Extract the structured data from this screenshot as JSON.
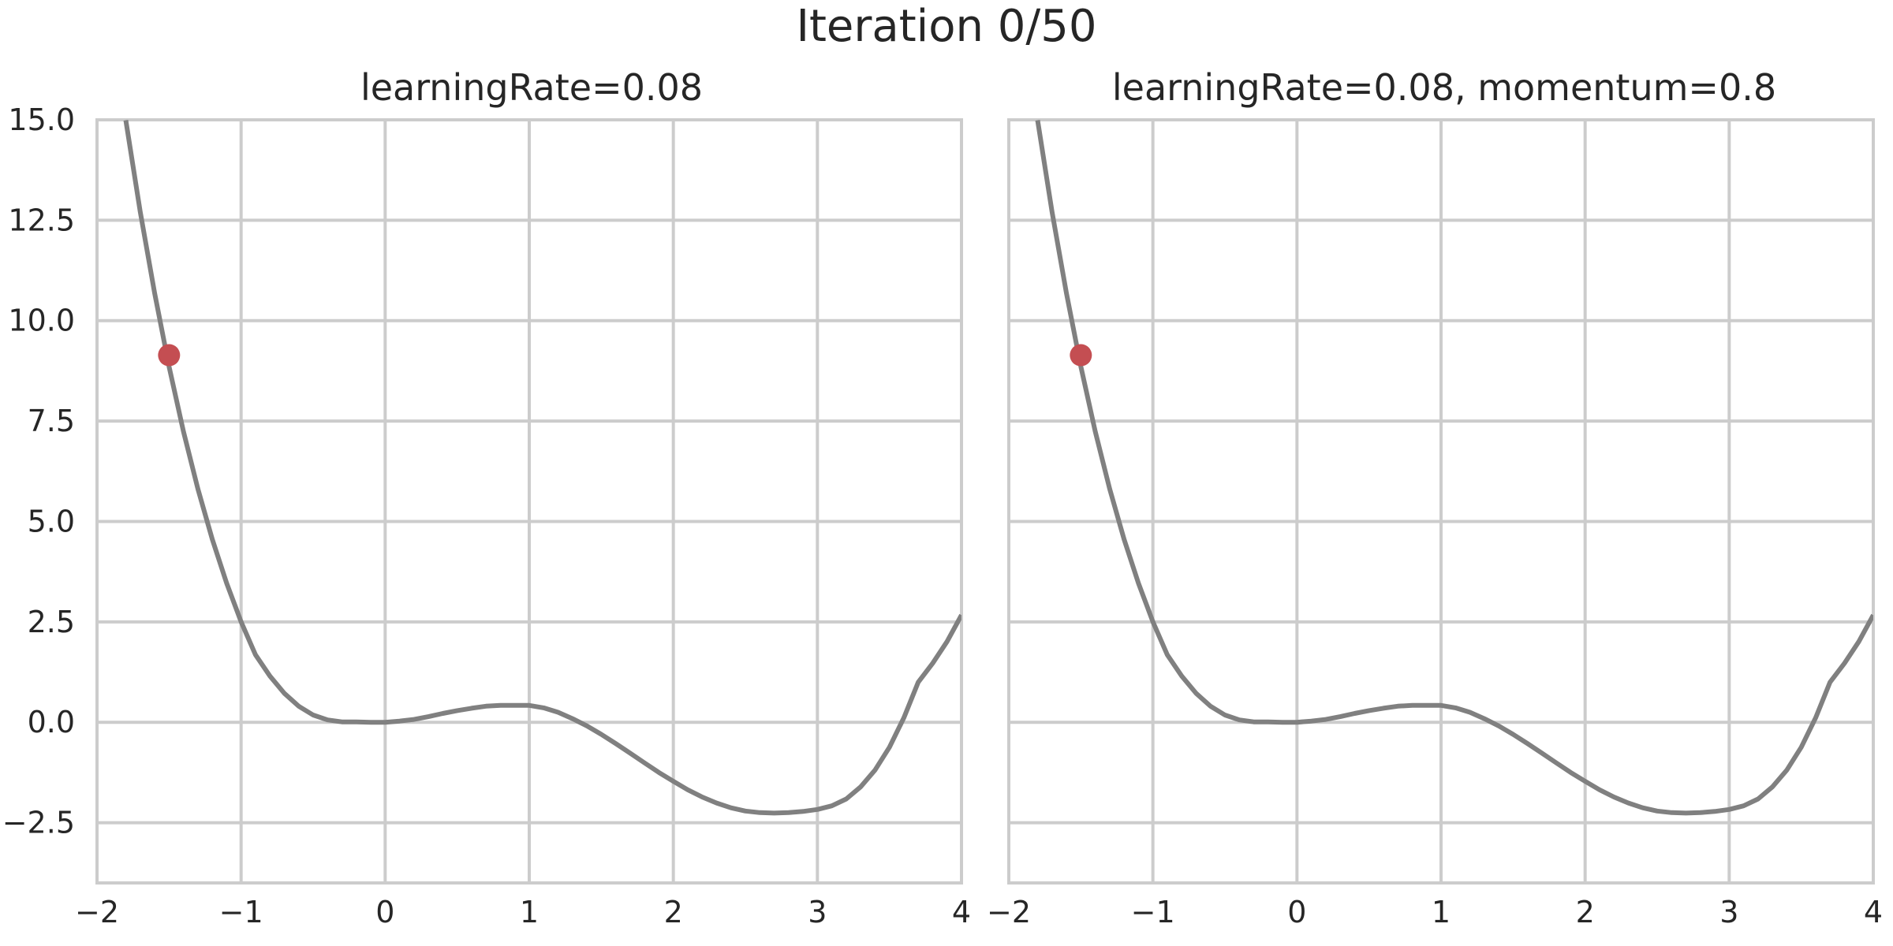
{
  "figure": {
    "title": "Iteration 0/50"
  },
  "chart_data": [
    {
      "type": "line",
      "title": "learningRate=0.08",
      "xlabel": "",
      "ylabel": "",
      "xlim": [
        -2,
        4
      ],
      "ylim": [
        -4,
        15
      ],
      "xticks": [
        -2,
        -1,
        0,
        1,
        2,
        3,
        4
      ],
      "xtick_labels": [
        "−2",
        "−1",
        "0",
        "1",
        "2",
        "3",
        "4"
      ],
      "yticks": [
        -2.5,
        0,
        2.5,
        5,
        7.5,
        10,
        12.5,
        15
      ],
      "ytick_labels": [
        "−2.5",
        "0.0",
        "2.5",
        "5.0",
        "7.5",
        "10.0",
        "12.5",
        "15.0"
      ],
      "grid": true,
      "series": [
        {
          "kind": "line",
          "color": "#808080",
          "x": [
            -1.8,
            -1.7,
            -1.6,
            -1.5,
            -1.4,
            -1.3,
            -1.2,
            -1.1,
            -1.0,
            -0.9,
            -0.8,
            -0.7,
            -0.6,
            -0.5,
            -0.4,
            -0.3,
            -0.2,
            -0.1,
            0.0,
            0.1,
            0.2,
            0.3,
            0.4,
            0.5,
            0.6,
            0.7,
            0.8,
            0.9,
            1.0,
            1.1,
            1.2,
            1.3,
            1.4,
            1.5,
            1.6,
            1.7,
            1.8,
            1.9,
            2.0,
            2.1,
            2.2,
            2.3,
            2.4,
            2.5,
            2.6,
            2.7,
            2.8,
            2.9,
            3.0,
            3.1,
            3.2,
            3.3,
            3.4,
            3.5,
            3.6,
            3.7,
            3.8,
            3.9,
            4.0
          ],
          "y": [
            14.99,
            12.71,
            10.68,
            8.86,
            7.24,
            5.81,
            4.56,
            3.46,
            2.5,
            1.68,
            1.15,
            0.72,
            0.4,
            0.18,
            0.06,
            0.01,
            0.01,
            0.0,
            0.0,
            0.03,
            0.07,
            0.14,
            0.22,
            0.29,
            0.35,
            0.4,
            0.42,
            0.42,
            0.42,
            0.36,
            0.25,
            0.09,
            -0.09,
            -0.3,
            -0.53,
            -0.77,
            -1.01,
            -1.25,
            -1.47,
            -1.68,
            -1.86,
            -2.01,
            -2.13,
            -2.21,
            -2.25,
            -2.26,
            -2.25,
            -2.22,
            -2.17,
            -2.08,
            -1.91,
            -1.61,
            -1.19,
            -0.62,
            0.11,
            1.0,
            1.47,
            2.01,
            2.67
          ]
        },
        {
          "kind": "point",
          "color": "#c44e52",
          "x": [
            -1.5
          ],
          "y": [
            9.14
          ]
        }
      ]
    },
    {
      "type": "line",
      "title": "learningRate=0.08, momentum=0.8",
      "xlabel": "",
      "ylabel": "",
      "xlim": [
        -2,
        4
      ],
      "ylim": [
        -4,
        15
      ],
      "xticks": [
        -2,
        -1,
        0,
        1,
        2,
        3,
        4
      ],
      "xtick_labels": [
        "−2",
        "−1",
        "0",
        "1",
        "2",
        "3",
        "4"
      ],
      "yticks": [
        -2.5,
        0,
        2.5,
        5,
        7.5,
        10,
        12.5,
        15
      ],
      "ytick_labels": [],
      "grid": true,
      "series": [
        {
          "kind": "line",
          "color": "#808080",
          "x": [
            -1.8,
            -1.7,
            -1.6,
            -1.5,
            -1.4,
            -1.3,
            -1.2,
            -1.1,
            -1.0,
            -0.9,
            -0.8,
            -0.7,
            -0.6,
            -0.5,
            -0.4,
            -0.3,
            -0.2,
            -0.1,
            0.0,
            0.1,
            0.2,
            0.3,
            0.4,
            0.5,
            0.6,
            0.7,
            0.8,
            0.9,
            1.0,
            1.1,
            1.2,
            1.3,
            1.4,
            1.5,
            1.6,
            1.7,
            1.8,
            1.9,
            2.0,
            2.1,
            2.2,
            2.3,
            2.4,
            2.5,
            2.6,
            2.7,
            2.8,
            2.9,
            3.0,
            3.1,
            3.2,
            3.3,
            3.4,
            3.5,
            3.6,
            3.7,
            3.8,
            3.9,
            4.0
          ],
          "y": [
            14.99,
            12.71,
            10.68,
            8.86,
            7.24,
            5.81,
            4.56,
            3.46,
            2.5,
            1.68,
            1.15,
            0.72,
            0.4,
            0.18,
            0.06,
            0.01,
            0.01,
            0.0,
            0.0,
            0.03,
            0.07,
            0.14,
            0.22,
            0.29,
            0.35,
            0.4,
            0.42,
            0.42,
            0.42,
            0.36,
            0.25,
            0.09,
            -0.09,
            -0.3,
            -0.53,
            -0.77,
            -1.01,
            -1.25,
            -1.47,
            -1.68,
            -1.86,
            -2.01,
            -2.13,
            -2.21,
            -2.25,
            -2.26,
            -2.25,
            -2.22,
            -2.17,
            -2.08,
            -1.91,
            -1.61,
            -1.19,
            -0.62,
            0.11,
            1.0,
            1.47,
            2.01,
            2.67
          ]
        },
        {
          "kind": "point",
          "color": "#c44e52",
          "x": [
            -1.5
          ],
          "y": [
            9.14
          ]
        }
      ]
    }
  ]
}
